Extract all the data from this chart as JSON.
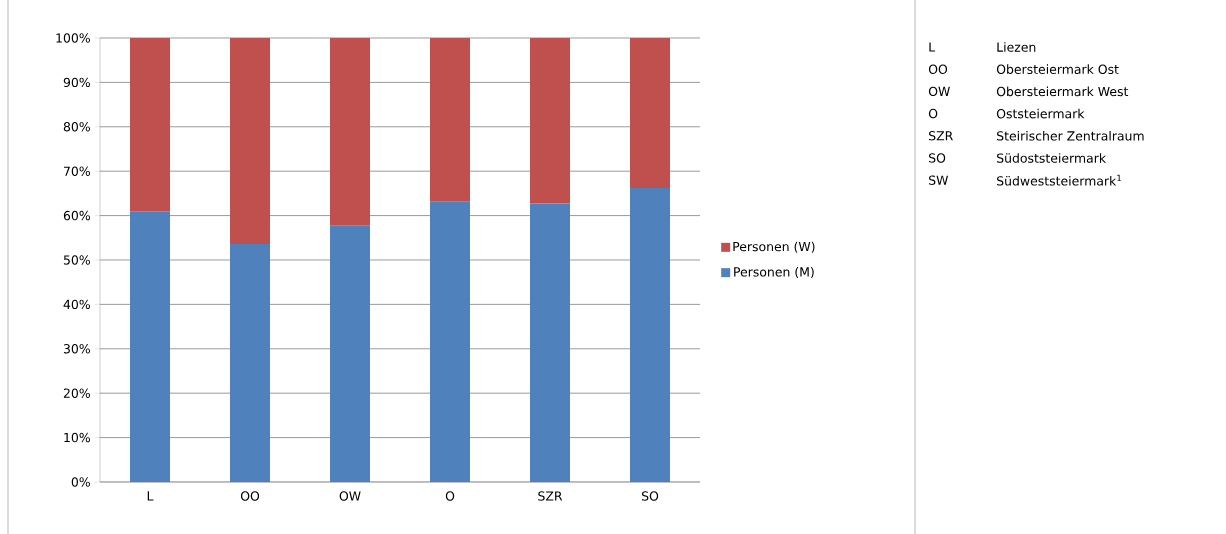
{
  "chart_data": {
    "type": "bar",
    "stacked": true,
    "categories": [
      "L",
      "OO",
      "OW",
      "O",
      "SZR",
      "SO"
    ],
    "series": [
      {
        "name": "Personen (M)",
        "color": "#4f81bd",
        "values": [
          61,
          53.6,
          57.7,
          63.1,
          62.7,
          66.2
        ]
      },
      {
        "name": "Personen (W)",
        "color": "#c0504d",
        "values": [
          39,
          46.4,
          42.3,
          36.9,
          37.3,
          33.8
        ]
      }
    ],
    "ylim": [
      0,
      100
    ],
    "yticks": [
      {
        "value": 0,
        "label": "0%"
      },
      {
        "value": 10,
        "label": "10%"
      },
      {
        "value": 20,
        "label": "20%"
      },
      {
        "value": 30,
        "label": "30%"
      },
      {
        "value": 40,
        "label": "40%"
      },
      {
        "value": 50,
        "label": "50%"
      },
      {
        "value": 60,
        "label": "60%"
      },
      {
        "value": 70,
        "label": "70%"
      },
      {
        "value": 80,
        "label": "80%"
      },
      {
        "value": 90,
        "label": "90%"
      },
      {
        "value": 100,
        "label": "100%"
      }
    ],
    "grid": "y",
    "legend": "right",
    "annotations": [
      "L",
      "Liezen",
      "OO",
      "Obersteiermark Ost",
      "OW",
      "Obersteiermark West",
      "O",
      "Oststeiermark",
      "SZR",
      "Steirischer Zentralraum",
      "SO",
      "Südoststeiermark",
      "SW",
      "Südweststeiermark$^{1}$"
    ]
  }
}
